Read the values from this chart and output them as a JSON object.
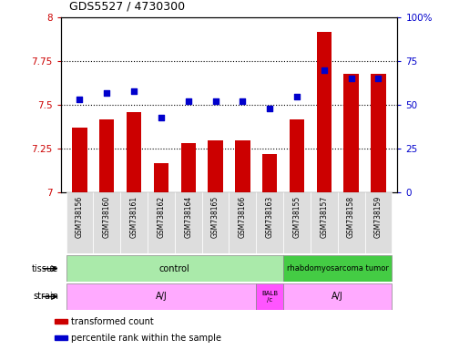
{
  "title": "GDS5527 / 4730300",
  "samples": [
    "GSM738156",
    "GSM738160",
    "GSM738161",
    "GSM738162",
    "GSM738164",
    "GSM738165",
    "GSM738166",
    "GSM738163",
    "GSM738155",
    "GSM738157",
    "GSM738158",
    "GSM738159"
  ],
  "red_values": [
    7.37,
    7.42,
    7.46,
    7.17,
    7.28,
    7.3,
    7.3,
    7.22,
    7.42,
    7.92,
    7.68,
    7.68
  ],
  "blue_values": [
    53,
    57,
    58,
    43,
    52,
    52,
    52,
    48,
    55,
    70,
    65,
    65
  ],
  "ylim_left": [
    7.0,
    8.0
  ],
  "ylim_right": [
    0,
    100
  ],
  "yticks_left": [
    7.0,
    7.25,
    7.5,
    7.75,
    8.0
  ],
  "yticks_right": [
    0,
    25,
    50,
    75,
    100
  ],
  "ytick_labels_left": [
    "7",
    "7.25",
    "7.5",
    "7.75",
    "8"
  ],
  "ytick_labels_right": [
    "0",
    "25",
    "50",
    "75",
    "100%"
  ],
  "dotted_lines": [
    7.25,
    7.5,
    7.75
  ],
  "bar_color": "#CC0000",
  "dot_color": "#0000CC",
  "tissue_segments": [
    {
      "label": "control",
      "start": 0,
      "end": 8,
      "color": "#99EE99"
    },
    {
      "label": "rhabdomyosarcoma tumor",
      "start": 8,
      "end": 12,
      "color": "#33CC33"
    }
  ],
  "strain_segments": [
    {
      "label": "A/J",
      "start": 0,
      "end": 7,
      "color": "#FFAAFF"
    },
    {
      "label": "BALB\n/c",
      "start": 7,
      "end": 8,
      "color": "#FF44FF"
    },
    {
      "label": "A/J",
      "start": 8,
      "end": 12,
      "color": "#FFAAFF"
    }
  ],
  "legend_items": [
    {
      "color": "#CC0000",
      "label": "transformed count"
    },
    {
      "color": "#0000CC",
      "label": "percentile rank within the sample"
    }
  ]
}
